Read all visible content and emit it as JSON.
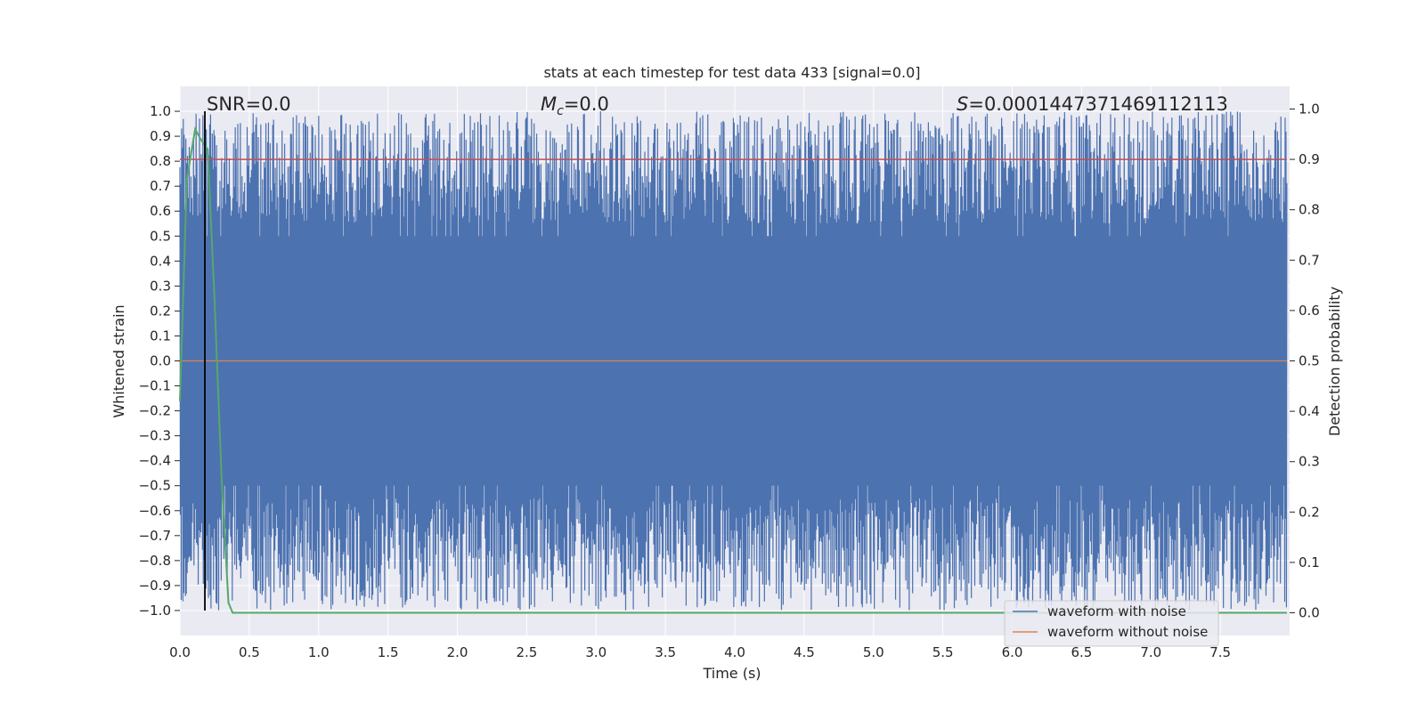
{
  "chart_data": {
    "type": "line",
    "title": "stats at each timestep for test data 433 [signal=0.0]",
    "xlabel": "Time (s)",
    "ylabel": "Whitened strain",
    "y2label": "Detection probability",
    "xlim": [
      0.0,
      8.0
    ],
    "ylim": [
      -1.1,
      1.1
    ],
    "y2lim": [
      -0.045,
      1.045
    ],
    "xticks": [
      "0.0",
      "0.5",
      "1.0",
      "1.5",
      "2.0",
      "2.5",
      "3.0",
      "3.5",
      "4.0",
      "4.5",
      "5.0",
      "5.5",
      "6.0",
      "6.5",
      "7.0",
      "7.5"
    ],
    "yticks": [
      "1.0",
      "0.9",
      "0.8",
      "0.7",
      "0.6",
      "0.5",
      "0.4",
      "0.3",
      "0.2",
      "0.1",
      "0.0",
      "−0.1",
      "−0.2",
      "−0.3",
      "−0.4",
      "−0.5",
      "−0.6",
      "−0.7",
      "−0.8",
      "−0.9",
      "−1.0"
    ],
    "y2ticks": [
      "1.0",
      "0.9",
      "0.8",
      "0.7",
      "0.6",
      "0.5",
      "0.4",
      "0.3",
      "0.2",
      "0.1",
      "0.0"
    ],
    "grid": true,
    "legend_position": "lower-right",
    "annotations": {
      "snr_label": "SNR=0.0",
      "mc_symbol": "M",
      "mc_sub": "c",
      "mc_value": "=0.0",
      "s_symbol": "S",
      "s_value": "=0.00014473714691121​13"
    },
    "series": [
      {
        "name": "waveform with noise",
        "color": "#4c72b0",
        "description_values": "dense noise oscillating between approximately -1.0 and 1.0 over 0-8 s"
      },
      {
        "name": "waveform without noise",
        "color": "#dd8452",
        "values_constant": 0.0
      },
      {
        "color": "#55a868",
        "axis": "right",
        "x": [
          0.0,
          0.05,
          0.11,
          0.15,
          0.2,
          0.25,
          0.3,
          0.35,
          0.38,
          7.98
        ],
        "y": [
          0.42,
          0.86,
          0.96,
          0.94,
          0.92,
          0.62,
          0.27,
          0.02,
          0.0,
          0.0
        ]
      },
      {
        "color": "#c44e52",
        "axis": "right",
        "constant": 0.9
      },
      {
        "color": "#000000",
        "vertical_x": 0.18
      }
    ]
  },
  "legend": [
    {
      "label": "waveform with noise",
      "color": "#4c72b0"
    },
    {
      "label": "waveform without noise",
      "color": "#dd8452"
    }
  ],
  "colors": {
    "plot_bg": "#eaeaf2",
    "grid": "#ffffff"
  }
}
